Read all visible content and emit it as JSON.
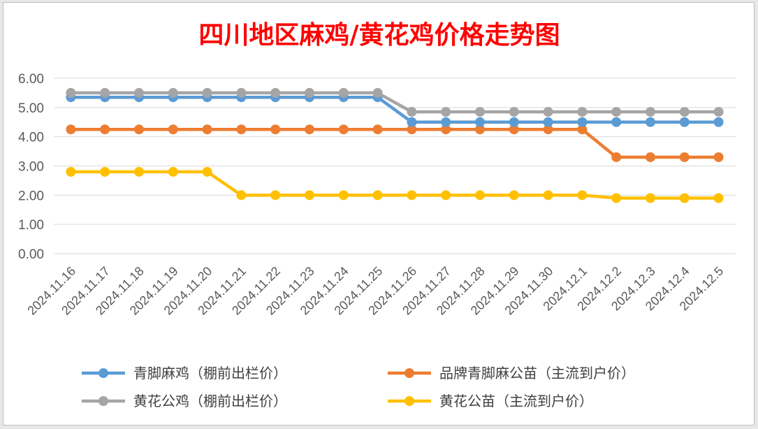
{
  "chart_data": {
    "type": "line",
    "title": "四川地区麻鸡/黄花鸡价格走势图",
    "title_color": "#ff0000",
    "xlabel": "",
    "ylabel": "",
    "ylim": [
      0,
      6
    ],
    "y_ticks": [
      "0.00",
      "1.00",
      "2.00",
      "3.00",
      "4.00",
      "5.00",
      "6.00"
    ],
    "grid": true,
    "legend_position": "bottom",
    "categories": [
      "2024.11.16",
      "2024.11.17",
      "2024.11.18",
      "2024.11.19",
      "2024.11.20",
      "2024.11.21",
      "2024.11.22",
      "2024.11.23",
      "2024.11.24",
      "2024.11.25",
      "2024.11.26",
      "2024.11.27",
      "2024.11.28",
      "2024.11.29",
      "2024.11.30",
      "2024.12.1",
      "2024.12.2",
      "2024.12.3",
      "2024.12.4",
      "2024.12.5"
    ],
    "series": [
      {
        "name": "青脚麻鸡（棚前出栏价）",
        "color": "#5b9bd5",
        "values": [
          5.35,
          5.35,
          5.35,
          5.35,
          5.35,
          5.35,
          5.35,
          5.35,
          5.35,
          5.35,
          4.5,
          4.5,
          4.5,
          4.5,
          4.5,
          4.5,
          4.5,
          4.5,
          4.5,
          4.5
        ]
      },
      {
        "name": "品牌青脚麻公苗（主流到户价）",
        "color": "#ed7d31",
        "values": [
          4.25,
          4.25,
          4.25,
          4.25,
          4.25,
          4.25,
          4.25,
          4.25,
          4.25,
          4.25,
          4.25,
          4.25,
          4.25,
          4.25,
          4.25,
          4.25,
          3.3,
          3.3,
          3.3,
          3.3
        ]
      },
      {
        "name": "黄花公鸡（棚前出栏价）",
        "color": "#a5a5a5",
        "values": [
          5.5,
          5.5,
          5.5,
          5.5,
          5.5,
          5.5,
          5.5,
          5.5,
          5.5,
          5.5,
          4.85,
          4.85,
          4.85,
          4.85,
          4.85,
          4.85,
          4.85,
          4.85,
          4.85,
          4.85
        ]
      },
      {
        "name": "黄花公苗（主流到户价）",
        "color": "#ffc000",
        "values": [
          2.8,
          2.8,
          2.8,
          2.8,
          2.8,
          2.0,
          2.0,
          2.0,
          2.0,
          2.0,
          2.0,
          2.0,
          2.0,
          2.0,
          2.0,
          2.0,
          1.9,
          1.9,
          1.9,
          1.9
        ]
      }
    ]
  }
}
